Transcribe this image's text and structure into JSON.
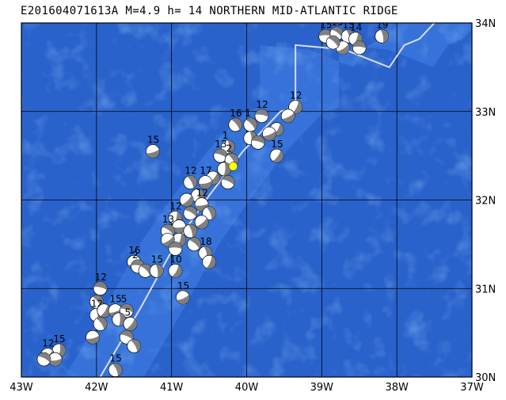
{
  "title": "E201604071613A M=4.9 h= 14 NORTHERN MID-ATLANTIC RIDGE",
  "colors": {
    "ocean": "#2a62cc",
    "ocean_dark": "#1f4fb3",
    "ridge_band": "#3b78dd",
    "ridge_band_light": "#4a86e3",
    "grid": "#000000",
    "plate_boundary": "#d9dde6",
    "event_marker": "#ffff00",
    "mechanism_dark": "#808080",
    "mechanism_light": "#ffffff"
  },
  "map": {
    "lon_range": [
      -43,
      -37
    ],
    "lat_range": [
      30,
      34
    ],
    "lon_ticks": [
      "43W",
      "42W",
      "41W",
      "40W",
      "39W",
      "38W",
      "37W"
    ],
    "lat_ticks": [
      "34N",
      "33N",
      "32N",
      "31N",
      "30N"
    ],
    "event": {
      "lon": -40.18,
      "lat": 32.38
    }
  },
  "plate_boundary": [
    [
      -41.95,
      30.0
    ],
    [
      -41.4,
      30.8
    ],
    [
      -40.95,
      31.5
    ],
    [
      -40.5,
      32.05
    ],
    [
      -40.05,
      32.55
    ],
    [
      -39.55,
      33.0
    ],
    [
      -39.35,
      33.05
    ],
    [
      -39.35,
      33.75
    ],
    [
      -38.7,
      33.7
    ],
    [
      -38.1,
      33.5
    ],
    [
      -37.9,
      33.75
    ],
    [
      -37.7,
      33.82
    ],
    [
      -37.5,
      34.0
    ]
  ],
  "mechanisms": [
    {
      "lon": -38.95,
      "lat": 33.85,
      "label": "15"
    },
    {
      "lon": -38.8,
      "lat": 33.88,
      "label": "15"
    },
    {
      "lon": -38.65,
      "lat": 33.85,
      "label": "15"
    },
    {
      "lon": -38.55,
      "lat": 33.82,
      "label": "14"
    },
    {
      "lon": -38.72,
      "lat": 33.72,
      "label": ""
    },
    {
      "lon": -38.5,
      "lat": 33.72,
      "label": ""
    },
    {
      "lon": -38.85,
      "lat": 33.78,
      "label": ""
    },
    {
      "lon": -38.2,
      "lat": 33.85,
      "label": "19"
    },
    {
      "lon": -39.35,
      "lat": 33.05,
      "label": "12"
    },
    {
      "lon": -39.45,
      "lat": 32.95,
      "label": ""
    },
    {
      "lon": -39.8,
      "lat": 32.95,
      "label": "12"
    },
    {
      "lon": -39.95,
      "lat": 32.85,
      "label": "1"
    },
    {
      "lon": -39.95,
      "lat": 32.7,
      "label": ""
    },
    {
      "lon": -39.6,
      "lat": 32.8,
      "label": ""
    },
    {
      "lon": -39.7,
      "lat": 32.75,
      "label": ""
    },
    {
      "lon": -39.85,
      "lat": 32.65,
      "label": ""
    },
    {
      "lon": -40.15,
      "lat": 32.85,
      "label": "16"
    },
    {
      "lon": -40.25,
      "lat": 32.6,
      "label": "1"
    },
    {
      "lon": -39.6,
      "lat": 32.5,
      "label": "15"
    },
    {
      "lon": -41.25,
      "lat": 32.55,
      "label": "15"
    },
    {
      "lon": -40.35,
      "lat": 32.5,
      "label": "13"
    },
    {
      "lon": -40.2,
      "lat": 32.45,
      "label": "2"
    },
    {
      "lon": -40.3,
      "lat": 32.35,
      "label": ""
    },
    {
      "lon": -40.45,
      "lat": 32.25,
      "label": ""
    },
    {
      "lon": -40.55,
      "lat": 32.2,
      "label": "17"
    },
    {
      "lon": -40.25,
      "lat": 32.2,
      "label": ""
    },
    {
      "lon": -40.75,
      "lat": 32.2,
      "label": "12"
    },
    {
      "lon": -40.65,
      "lat": 32.05,
      "label": ""
    },
    {
      "lon": -40.8,
      "lat": 32.0,
      "label": ""
    },
    {
      "lon": -40.6,
      "lat": 31.95,
      "label": "12"
    },
    {
      "lon": -40.75,
      "lat": 31.85,
      "label": ""
    },
    {
      "lon": -40.5,
      "lat": 31.85,
      "label": ""
    },
    {
      "lon": -40.95,
      "lat": 31.8,
      "label": "12"
    },
    {
      "lon": -40.6,
      "lat": 31.75,
      "label": ""
    },
    {
      "lon": -40.9,
      "lat": 31.7,
      "label": ""
    },
    {
      "lon": -41.05,
      "lat": 31.65,
      "label": "13"
    },
    {
      "lon": -40.75,
      "lat": 31.65,
      "label": ""
    },
    {
      "lon": -40.9,
      "lat": 31.55,
      "label": ""
    },
    {
      "lon": -41.05,
      "lat": 31.55,
      "label": ""
    },
    {
      "lon": -40.95,
      "lat": 31.45,
      "label": ""
    },
    {
      "lon": -40.7,
      "lat": 31.5,
      "label": ""
    },
    {
      "lon": -40.55,
      "lat": 31.4,
      "label": "18"
    },
    {
      "lon": -40.5,
      "lat": 31.3,
      "label": ""
    },
    {
      "lon": -41.5,
      "lat": 31.3,
      "label": "16"
    },
    {
      "lon": -41.45,
      "lat": 31.25,
      "label": "2"
    },
    {
      "lon": -41.35,
      "lat": 31.2,
      "label": ""
    },
    {
      "lon": -41.2,
      "lat": 31.2,
      "label": "15"
    },
    {
      "lon": -40.95,
      "lat": 31.2,
      "label": "10"
    },
    {
      "lon": -40.85,
      "lat": 30.9,
      "label": "15"
    },
    {
      "lon": -41.95,
      "lat": 31.0,
      "label": "12"
    },
    {
      "lon": -42.0,
      "lat": 30.85,
      "label": ""
    },
    {
      "lon": -42.0,
      "lat": 30.7,
      "label": "12"
    },
    {
      "lon": -41.9,
      "lat": 30.75,
      "label": ""
    },
    {
      "lon": -41.75,
      "lat": 30.75,
      "label": "15"
    },
    {
      "lon": -41.6,
      "lat": 30.75,
      "label": "5"
    },
    {
      "lon": -41.95,
      "lat": 30.6,
      "label": ""
    },
    {
      "lon": -41.7,
      "lat": 30.65,
      "label": ""
    },
    {
      "lon": -41.55,
      "lat": 30.6,
      "label": "5"
    },
    {
      "lon": -42.05,
      "lat": 30.45,
      "label": ""
    },
    {
      "lon": -41.6,
      "lat": 30.45,
      "label": ""
    },
    {
      "lon": -41.5,
      "lat": 30.35,
      "label": ""
    },
    {
      "lon": -42.5,
      "lat": 30.3,
      "label": "15"
    },
    {
      "lon": -42.65,
      "lat": 30.25,
      "label": "12"
    },
    {
      "lon": -42.55,
      "lat": 30.2,
      "label": ""
    },
    {
      "lon": -42.7,
      "lat": 30.2,
      "label": ""
    },
    {
      "lon": -41.75,
      "lat": 30.08,
      "label": "15"
    }
  ]
}
